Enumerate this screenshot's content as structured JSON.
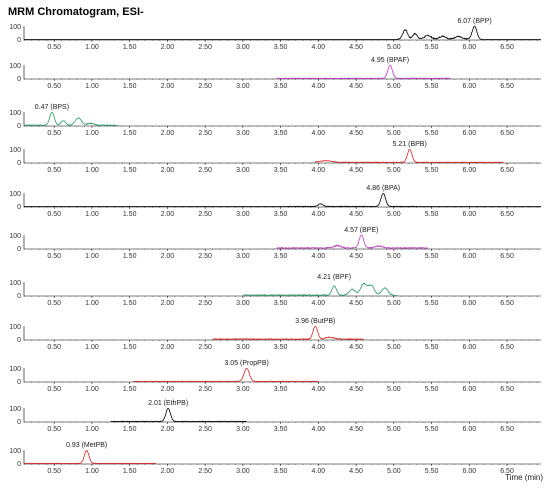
{
  "chart_data": {
    "type": "line",
    "title": "MRM Chromatogram, ESI-",
    "xlabel": "Time (min)",
    "xlim": [
      0.1,
      6.95
    ],
    "ylim": [
      0,
      100
    ],
    "x_ticks": [
      "0.50",
      "1.00",
      "1.50",
      "2.00",
      "2.50",
      "3.00",
      "3.50",
      "4.00",
      "4.50",
      "5.00",
      "5.50",
      "6.00",
      "6.50"
    ],
    "y_ticks": [
      "0",
      "100"
    ],
    "series": [
      {
        "name": "BPP",
        "color": "#000000",
        "peak_rt": 6.07,
        "peak_label": "6.07 (BPP)",
        "trace_range": [
          0.1,
          6.95
        ],
        "peaks": [
          {
            "rt": 6.07,
            "h": 100,
            "w": 0.03
          },
          {
            "rt": 5.15,
            "h": 72,
            "w": 0.03
          },
          {
            "rt": 5.28,
            "h": 40,
            "w": 0.03
          },
          {
            "rt": 5.45,
            "h": 28,
            "w": 0.04
          },
          {
            "rt": 5.65,
            "h": 22,
            "w": 0.04
          },
          {
            "rt": 5.85,
            "h": 20,
            "w": 0.04
          }
        ],
        "noise": 8,
        "noise_range": [
          5.05,
          6.1
        ]
      },
      {
        "name": "BPAF",
        "color": "#cc33cc",
        "peak_rt": 4.95,
        "peak_label": "4.95 (BPAF)",
        "trace_range": [
          3.45,
          5.75
        ],
        "peaks": [
          {
            "rt": 4.95,
            "h": 100,
            "w": 0.03
          }
        ],
        "noise": 3,
        "noise_range": [
          3.45,
          5.75
        ]
      },
      {
        "name": "BPS",
        "color": "#2a9d6a",
        "peak_rt": 0.47,
        "peak_label": "0.47 (BPS)",
        "trace_range": [
          0.1,
          1.35
        ],
        "peaks": [
          {
            "rt": 0.47,
            "h": 100,
            "w": 0.03
          },
          {
            "rt": 0.62,
            "h": 35,
            "w": 0.03
          },
          {
            "rt": 0.82,
            "h": 55,
            "w": 0.04
          },
          {
            "rt": 0.98,
            "h": 15,
            "w": 0.04
          }
        ],
        "noise": 5,
        "noise_range": [
          0.1,
          1.3
        ]
      },
      {
        "name": "BPB",
        "color": "#dd2222",
        "peak_rt": 5.21,
        "peak_label": "5.21 (BPB)",
        "trace_range": [
          3.95,
          6.45
        ],
        "peaks": [
          {
            "rt": 5.21,
            "h": 100,
            "w": 0.03
          },
          {
            "rt": 4.1,
            "h": 12,
            "w": 0.08
          }
        ],
        "noise": 3,
        "noise_range": [
          3.95,
          6.45
        ]
      },
      {
        "name": "BPA",
        "color": "#000000",
        "peak_rt": 4.86,
        "peak_label": "4.86 (BPA)",
        "trace_range": [
          0.1,
          6.95
        ],
        "peaks": [
          {
            "rt": 4.86,
            "h": 100,
            "w": 0.03
          },
          {
            "rt": 4.03,
            "h": 20,
            "w": 0.03
          }
        ],
        "noise": 2,
        "noise_range": [
          3.6,
          5.3
        ]
      },
      {
        "name": "BPE",
        "color": "#bb44bb",
        "peak_rt": 4.57,
        "peak_label": "4.57 (BPE)",
        "trace_range": [
          3.45,
          5.45
        ],
        "peaks": [
          {
            "rt": 4.57,
            "h": 100,
            "w": 0.03
          },
          {
            "rt": 4.25,
            "h": 18,
            "w": 0.05
          },
          {
            "rt": 4.8,
            "h": 14,
            "w": 0.05
          }
        ],
        "noise": 8,
        "noise_range": [
          3.45,
          5.45
        ]
      },
      {
        "name": "BPF",
        "color": "#2a9d6a",
        "peak_rt": 4.21,
        "peak_label": "4.21 (BPF)",
        "trace_range": [
          3.0,
          5.05
        ],
        "peaks": [
          {
            "rt": 4.21,
            "h": 70,
            "w": 0.03
          },
          {
            "rt": 4.45,
            "h": 45,
            "w": 0.04
          },
          {
            "rt": 4.6,
            "h": 85,
            "w": 0.04
          },
          {
            "rt": 4.7,
            "h": 75,
            "w": 0.04
          },
          {
            "rt": 4.88,
            "h": 55,
            "w": 0.04
          }
        ],
        "noise": 6,
        "noise_range": [
          3.0,
          5.0
        ]
      },
      {
        "name": "ButPB",
        "color": "#dd2222",
        "peak_rt": 3.96,
        "peak_label": "3.96 (ButPB)",
        "trace_range": [
          2.6,
          4.6
        ],
        "peaks": [
          {
            "rt": 3.96,
            "h": 100,
            "w": 0.03
          },
          {
            "rt": 4.15,
            "h": 15,
            "w": 0.05
          }
        ],
        "noise": 6,
        "noise_range": [
          2.6,
          4.6
        ]
      },
      {
        "name": "PropPB",
        "color": "#dd2222",
        "peak_rt": 3.05,
        "peak_label": "3.05 (PropPB)",
        "trace_range": [
          1.55,
          4.0
        ],
        "peaks": [
          {
            "rt": 3.05,
            "h": 100,
            "w": 0.035
          }
        ],
        "noise": 2,
        "noise_range": [
          1.55,
          4.0
        ]
      },
      {
        "name": "EthPB",
        "color": "#000000",
        "peak_rt": 2.01,
        "peak_label": "2.01 (EthPB)",
        "trace_range": [
          1.25,
          3.05
        ],
        "peaks": [
          {
            "rt": 2.01,
            "h": 100,
            "w": 0.03
          }
        ],
        "noise": 2,
        "noise_range": [
          1.25,
          3.05
        ]
      },
      {
        "name": "MetPB",
        "color": "#dd2222",
        "peak_rt": 0.93,
        "peak_label": "0.93 (MetPB)",
        "trace_range": [
          0.1,
          1.85
        ],
        "peaks": [
          {
            "rt": 0.93,
            "h": 100,
            "w": 0.03
          }
        ],
        "noise": 2,
        "noise_range": [
          0.1,
          1.85
        ]
      }
    ]
  }
}
